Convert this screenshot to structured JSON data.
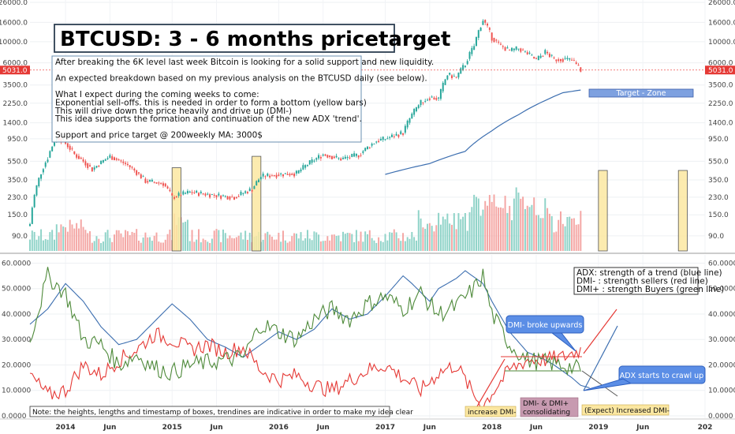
{
  "title": "BTCUSD: 3 - 6 months pricetarget",
  "description_lines": [
    "After breaking the 6K level last week Bitcoin is looking for a solid support and new liquidity.",
    "",
    "An expected breakdown based on my previous analysis on the BTCUSD daily (see below).",
    "",
    "What I expect during the coming weeks to come:",
    "Exponential sell-offs. this is needed in order to form a bottom (yellow bars)",
    "This will drive down the price heavily and drive up (DMI-)",
    "This idea supports the formation and continuation of the new ADX 'trend'.",
    "",
    "Support and price target @ 200weekly MA: 3000$"
  ],
  "target_zone_label": "Target - Zone",
  "current_price_label": "5031.0",
  "legend_lines": [
    "ADX: strength of a trend (blue line)",
    "DMI- : strength sellers (red line)",
    "DMI+ : strength Buyers (green line)"
  ],
  "callouts": {
    "dmi_minus": "DMI- broke upwards",
    "adx": "ADX starts to crawl up"
  },
  "bottom_labels": {
    "note": "Note: the heights, lengths and timestamp of boxes, trendines are indicative in order to make my idea clear",
    "increase_dmi": "increase DMI-",
    "consolidating_1": "DMI- & DMI+",
    "consolidating_2": "consolidating",
    "expect": "(Expect) Increased DMI-"
  },
  "colors": {
    "up": "#26a69a",
    "down": "#ef5350",
    "adx": "#3d6fb0",
    "dmi_minus": "#e53935",
    "dmi_plus": "#4e8a3a",
    "yellow_box": "#fbe7a1",
    "target_zone": "#7ea1e0",
    "callout": "#5b8ee6"
  },
  "chart_data": [
    {
      "type": "candlestick",
      "y_scale": "log",
      "y_ticks": [
        "26000.0",
        "16000.0",
        "10000.0",
        "6000.0",
        "3500.0",
        "2250.0",
        "1400.0",
        "950.0",
        "550.0",
        "350.0",
        "230.0",
        "150.0",
        "90.0"
      ],
      "y_tick_values": [
        26000,
        16000,
        10000,
        6000,
        3500,
        2250,
        1400,
        950,
        550,
        350,
        230,
        150,
        90
      ],
      "x_ticks": [
        "2014",
        "Jun",
        "2015",
        "Jun",
        "2016",
        "Jun",
        "2017",
        "Jun",
        "2018",
        "Jun",
        "2019",
        "Jun",
        "202"
      ],
      "price_path_points": [
        [
          "2013-09",
          120
        ],
        [
          "2013-11",
          600
        ],
        [
          "2013-12",
          1000
        ],
        [
          "2014-01",
          850
        ],
        [
          "2014-02",
          650
        ],
        [
          "2014-04",
          450
        ],
        [
          "2014-06",
          620
        ],
        [
          "2014-08",
          500
        ],
        [
          "2014-10",
          340
        ],
        [
          "2014-12",
          320
        ],
        [
          "2015-01",
          230
        ],
        [
          "2015-03",
          260
        ],
        [
          "2015-06",
          240
        ],
        [
          "2015-08",
          230
        ],
        [
          "2015-10",
          280
        ],
        [
          "2015-11",
          380
        ],
        [
          "2016-01",
          400
        ],
        [
          "2016-03",
          410
        ],
        [
          "2016-06",
          650
        ],
        [
          "2016-08",
          580
        ],
        [
          "2016-10",
          640
        ],
        [
          "2016-12",
          900
        ],
        [
          "2017-01",
          950
        ],
        [
          "2017-03",
          1100
        ],
        [
          "2017-05",
          2300
        ],
        [
          "2017-06",
          2600
        ],
        [
          "2017-07",
          2500
        ],
        [
          "2017-08",
          4500
        ],
        [
          "2017-09",
          4200
        ],
        [
          "2017-10",
          5800
        ],
        [
          "2017-11",
          9000
        ],
        [
          "2017-12",
          17000
        ],
        [
          "2018-01",
          11000
        ],
        [
          "2018-02",
          9000
        ],
        [
          "2018-03",
          8000
        ],
        [
          "2018-04",
          8500
        ],
        [
          "2018-05",
          7500
        ],
        [
          "2018-06",
          6400
        ],
        [
          "2018-07",
          7800
        ],
        [
          "2018-08",
          6500
        ],
        [
          "2018-09",
          6600
        ],
        [
          "2018-10",
          6400
        ],
        [
          "2018-11",
          5031
        ]
      ],
      "ma200_points": [
        [
          "2017-01",
          400
        ],
        [
          "2017-06",
          520
        ],
        [
          "2017-10",
          700
        ],
        [
          "2018-01",
          1150
        ],
        [
          "2018-04",
          1700
        ],
        [
          "2018-07",
          2400
        ],
        [
          "2018-09",
          2900
        ],
        [
          "2018-11",
          3100
        ]
      ],
      "current_price": 5031.0,
      "target_zone": [
        2900,
        3250
      ],
      "yellow_bars": [
        {
          "from": "2015-01",
          "to": "2015-02",
          "top": 470
        },
        {
          "from": "2015-10",
          "to": "2015-11",
          "top": 620
        },
        {
          "from": "2019-01",
          "to": "2019-02",
          "top": 440
        },
        {
          "from": "2019-10",
          "to": "2019-11",
          "top": 440
        }
      ]
    },
    {
      "type": "line",
      "y_ticks": [
        "60.0000",
        "50.0000",
        "40.0000",
        "30.0000",
        "20.0000",
        "10.0000",
        "0.0000"
      ],
      "ylim": [
        0,
        62
      ],
      "series": [
        {
          "name": "ADX",
          "points": [
            [
              "2013-09",
              36
            ],
            [
              "2013-11",
              42
            ],
            [
              "2014-01",
              52
            ],
            [
              "2014-03",
              45
            ],
            [
              "2014-05",
              35
            ],
            [
              "2014-07",
              28
            ],
            [
              "2014-09",
              30
            ],
            [
              "2014-11",
              37
            ],
            [
              "2015-01",
              44
            ],
            [
              "2015-03",
              38
            ],
            [
              "2015-05",
              30
            ],
            [
              "2015-07",
              27
            ],
            [
              "2015-09",
              23
            ],
            [
              "2015-11",
              28
            ],
            [
              "2016-01",
              33
            ],
            [
              "2016-03",
              30
            ],
            [
              "2016-05",
              34
            ],
            [
              "2016-07",
              42
            ],
            [
              "2016-09",
              38
            ],
            [
              "2016-11",
              40
            ],
            [
              "2017-01",
              47
            ],
            [
              "2017-03",
              55
            ],
            [
              "2017-04",
              52
            ],
            [
              "2017-06",
              45
            ],
            [
              "2017-07",
              50
            ],
            [
              "2017-09",
              54
            ],
            [
              "2017-10",
              57
            ],
            [
              "2017-12",
              52
            ],
            [
              "2018-01",
              45
            ],
            [
              "2018-03",
              33
            ],
            [
              "2018-05",
              25
            ],
            [
              "2018-07",
              22
            ],
            [
              "2018-08",
              20
            ],
            [
              "2018-10",
              15
            ],
            [
              "2018-11",
              12
            ],
            [
              "2018-12",
              11
            ]
          ]
        },
        {
          "name": "DMI-",
          "points": [
            [
              "2013-09",
              16
            ],
            [
              "2013-11",
              8
            ],
            [
              "2014-01",
              10
            ],
            [
              "2014-03",
              20
            ],
            [
              "2014-05",
              16
            ],
            [
              "2014-07",
              22
            ],
            [
              "2014-09",
              26
            ],
            [
              "2014-11",
              32
            ],
            [
              "2015-01",
              30
            ],
            [
              "2015-03",
              26
            ],
            [
              "2015-05",
              28
            ],
            [
              "2015-07",
              25
            ],
            [
              "2015-09",
              27
            ],
            [
              "2015-11",
              18
            ],
            [
              "2016-01",
              14
            ],
            [
              "2016-03",
              16
            ],
            [
              "2016-05",
              12
            ],
            [
              "2016-07",
              10
            ],
            [
              "2016-09",
              14
            ],
            [
              "2016-11",
              18
            ],
            [
              "2017-01",
              20
            ],
            [
              "2017-03",
              15
            ],
            [
              "2017-05",
              10
            ],
            [
              "2017-07",
              17
            ],
            [
              "2017-09",
              20
            ],
            [
              "2017-11",
              8
            ],
            [
              "2017-12",
              4
            ],
            [
              "2018-01",
              9
            ],
            [
              "2018-03",
              18
            ],
            [
              "2018-05",
              22
            ],
            [
              "2018-07",
              22
            ],
            [
              "2018-09",
              23
            ],
            [
              "2018-11",
              26
            ]
          ]
        },
        {
          "name": "DMI+",
          "points": [
            [
              "2013-09",
              30
            ],
            [
              "2013-11",
              55
            ],
            [
              "2014-01",
              48
            ],
            [
              "2014-03",
              30
            ],
            [
              "2014-05",
              28
            ],
            [
              "2014-07",
              20
            ],
            [
              "2014-09",
              24
            ],
            [
              "2014-11",
              19
            ],
            [
              "2015-01",
              17
            ],
            [
              "2015-03",
              20
            ],
            [
              "2015-05",
              21
            ],
            [
              "2015-07",
              22
            ],
            [
              "2015-09",
              23
            ],
            [
              "2015-11",
              36
            ],
            [
              "2016-01",
              33
            ],
            [
              "2016-03",
              30
            ],
            [
              "2016-05",
              38
            ],
            [
              "2016-07",
              42
            ],
            [
              "2016-09",
              38
            ],
            [
              "2016-11",
              44
            ],
            [
              "2017-01",
              47
            ],
            [
              "2017-03",
              42
            ],
            [
              "2017-05",
              48
            ],
            [
              "2017-07",
              40
            ],
            [
              "2017-09",
              43
            ],
            [
              "2017-11",
              50
            ],
            [
              "2017-12",
              55
            ],
            [
              "2018-01",
              40
            ],
            [
              "2018-03",
              28
            ],
            [
              "2018-05",
              22
            ],
            [
              "2018-07",
              21
            ],
            [
              "2018-09",
              20
            ],
            [
              "2018-11",
              18
            ]
          ]
        }
      ]
    }
  ]
}
